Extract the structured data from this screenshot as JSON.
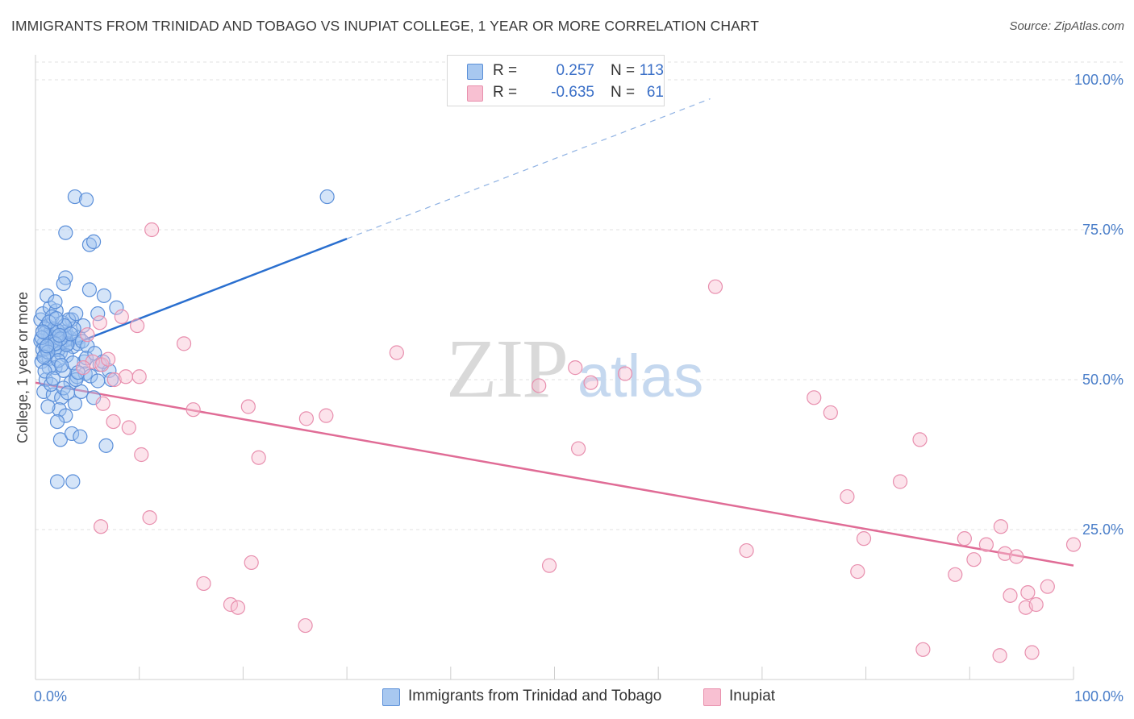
{
  "header": {
    "title": "IMMIGRANTS FROM TRINIDAD AND TOBAGO VS INUPIAT COLLEGE, 1 YEAR OR MORE CORRELATION CHART",
    "source": "Source: ZipAtlas.com"
  },
  "watermark": {
    "zip": "ZIP",
    "atlas": "atlas"
  },
  "legend": {
    "rows": [
      {
        "r_label": "R =",
        "r_value": "0.257",
        "n_label": "N =",
        "n_value": "113",
        "color": "#a8c8f0",
        "border": "#5a8fd8"
      },
      {
        "r_label": "R =",
        "r_value": "-0.635",
        "n_label": "N =",
        "n_value": "61",
        "color": "#f8c0d2",
        "border": "#e890ad"
      }
    ]
  },
  "bottom_legend": {
    "items": [
      {
        "label": "Immigrants from Trinidad and Tobago",
        "color": "#a8c8f0"
      },
      {
        "label": "Inupiat",
        "color": "#f8c0d2"
      }
    ]
  },
  "chart_data": {
    "type": "scatter",
    "title": "IMMIGRANTS FROM TRINIDAD AND TOBAGO VS INUPIAT COLLEGE, 1 YEAR OR MORE CORRELATION CHART",
    "xlabel": "",
    "ylabel": "College, 1 year or more",
    "xlim": [
      0,
      100
    ],
    "ylim": [
      0,
      100
    ],
    "x_tick_labels": [
      "0.0%",
      "100.0%"
    ],
    "y_tick_labels": [
      "25.0%",
      "50.0%",
      "75.0%",
      "100.0%"
    ],
    "y_ticks": [
      25,
      50,
      75,
      100
    ],
    "grid": true,
    "series": [
      {
        "name": "Immigrants from Trinidad and Tobago",
        "color": "#5b8fd9",
        "fill": "rgba(160,195,240,0.45)",
        "trend": {
          "x0": 0,
          "y0": 53.5,
          "x1": 30,
          "y1": 73.5,
          "dash_to_x": 65,
          "line_color": "#2a6fcf"
        },
        "points": [
          [
            0.8,
            56
          ],
          [
            1.2,
            57.5
          ],
          [
            1.5,
            58
          ],
          [
            0.5,
            60
          ],
          [
            1.8,
            55
          ],
          [
            2.2,
            56.5
          ],
          [
            2.6,
            57
          ],
          [
            1.1,
            59
          ],
          [
            0.7,
            61
          ],
          [
            1.4,
            62
          ],
          [
            2.0,
            61.5
          ],
          [
            1.6,
            60.5
          ],
          [
            2.9,
            58
          ],
          [
            3.3,
            57
          ],
          [
            0.9,
            54
          ],
          [
            1.3,
            53.5
          ],
          [
            2.4,
            54.5
          ],
          [
            3.6,
            55.5
          ],
          [
            0.6,
            53
          ],
          [
            1.9,
            52
          ],
          [
            2.7,
            51.5
          ],
          [
            3.1,
            56
          ],
          [
            4.2,
            57
          ],
          [
            4.6,
            59
          ],
          [
            1.0,
            50
          ],
          [
            0.8,
            48
          ],
          [
            1.7,
            47.5
          ],
          [
            2.5,
            47
          ],
          [
            3.4,
            49.5
          ],
          [
            4.0,
            50.5
          ],
          [
            2.3,
            45
          ],
          [
            2.9,
            44
          ],
          [
            2.1,
            43
          ],
          [
            3.8,
            46
          ],
          [
            4.4,
            48
          ],
          [
            1.2,
            45.5
          ],
          [
            5.6,
            47
          ],
          [
            2.4,
            40
          ],
          [
            3.5,
            41
          ],
          [
            4.3,
            40.5
          ],
          [
            6.8,
            39
          ],
          [
            2.1,
            33
          ],
          [
            3.6,
            33
          ],
          [
            3.8,
            80.5
          ],
          [
            4.9,
            80
          ],
          [
            2.9,
            74.5
          ],
          [
            5.2,
            72.5
          ],
          [
            5.6,
            73
          ],
          [
            2.9,
            67
          ],
          [
            2.7,
            66
          ],
          [
            6.6,
            64
          ],
          [
            5.2,
            65
          ],
          [
            7.8,
            62
          ],
          [
            1.1,
            64
          ],
          [
            1.9,
            63
          ],
          [
            6.0,
            61
          ],
          [
            3.5,
            60
          ],
          [
            0.9,
            58.5
          ],
          [
            1.5,
            58
          ],
          [
            2.8,
            57.5
          ],
          [
            3.7,
            58.5
          ],
          [
            4.1,
            56
          ],
          [
            0.5,
            56.5
          ],
          [
            2.2,
            55
          ],
          [
            3.0,
            54
          ],
          [
            4.7,
            53
          ],
          [
            6.2,
            52.5
          ],
          [
            7.1,
            51.5
          ],
          [
            4.8,
            51
          ],
          [
            3.9,
            50
          ],
          [
            7.3,
            50
          ],
          [
            1.3,
            52
          ],
          [
            2.0,
            57
          ],
          [
            0.7,
            55
          ],
          [
            1.8,
            58.5
          ],
          [
            2.6,
            59.5
          ],
          [
            3.2,
            60
          ],
          [
            1.4,
            57.2
          ],
          [
            0.9,
            57.8
          ],
          [
            2.1,
            58.2
          ],
          [
            1.6,
            56.3
          ],
          [
            3.0,
            55.8
          ],
          [
            2.4,
            56.8
          ],
          [
            1.0,
            55.2
          ],
          [
            0.6,
            57.0
          ],
          [
            1.9,
            56.0
          ],
          [
            2.8,
            59.0
          ],
          [
            3.4,
            57.6
          ],
          [
            4.5,
            56.4
          ],
          [
            5.0,
            55.6
          ],
          [
            1.2,
            54.6
          ],
          [
            0.8,
            53.8
          ],
          [
            2.2,
            53.2
          ],
          [
            3.6,
            52.8
          ],
          [
            4.1,
            51.2
          ],
          [
            5.3,
            50.6
          ],
          [
            6.0,
            49.8
          ],
          [
            1.5,
            49.2
          ],
          [
            2.7,
            48.6
          ],
          [
            3.1,
            47.8
          ],
          [
            0.9,
            51.4
          ],
          [
            1.7,
            50.2
          ],
          [
            2.5,
            52.4
          ],
          [
            4.9,
            53.6
          ],
          [
            5.7,
            54.4
          ],
          [
            6.5,
            53.0
          ],
          [
            1.3,
            59.6
          ],
          [
            2.0,
            60.2
          ],
          [
            0.7,
            58.0
          ],
          [
            3.9,
            61.0
          ],
          [
            28.1,
            80.5
          ],
          [
            1.1,
            55.6
          ],
          [
            2.3,
            57.4
          ]
        ]
      },
      {
        "name": "Inupiat",
        "color": "#e88fae",
        "fill": "rgba(248,192,210,0.45)",
        "trend": {
          "x0": 0,
          "y0": 49.5,
          "x1": 100,
          "y1": 19,
          "line_color": "#e06c96"
        },
        "points": [
          [
            11.2,
            75
          ],
          [
            5.5,
            53
          ],
          [
            4.6,
            52
          ],
          [
            6.4,
            52.5
          ],
          [
            8.3,
            60.5
          ],
          [
            6.2,
            59.5
          ],
          [
            7.6,
            50
          ],
          [
            10.0,
            50.5
          ],
          [
            6.5,
            46
          ],
          [
            7.5,
            43
          ],
          [
            9.0,
            42
          ],
          [
            10.2,
            37.5
          ],
          [
            11.0,
            27
          ],
          [
            6.3,
            25.5
          ],
          [
            15.2,
            45
          ],
          [
            20.5,
            45.5
          ],
          [
            21.5,
            37
          ],
          [
            28.0,
            44
          ],
          [
            34.8,
            54.5
          ],
          [
            20.8,
            19.5
          ],
          [
            16.2,
            16
          ],
          [
            18.8,
            12.5
          ],
          [
            19.5,
            12
          ],
          [
            26.0,
            9
          ],
          [
            52.0,
            52
          ],
          [
            53.5,
            49.5
          ],
          [
            56.8,
            51
          ],
          [
            65.5,
            65.5
          ],
          [
            52.3,
            38.5
          ],
          [
            49.5,
            19
          ],
          [
            75.0,
            47
          ],
          [
            76.6,
            44.5
          ],
          [
            78.2,
            30.5
          ],
          [
            85.2,
            40
          ],
          [
            83.3,
            33
          ],
          [
            79.8,
            23.5
          ],
          [
            79.2,
            18
          ],
          [
            85.5,
            5
          ],
          [
            88.6,
            17.5
          ],
          [
            89.5,
            23.5
          ],
          [
            90.4,
            20
          ],
          [
            91.6,
            22.5
          ],
          [
            93.0,
            25.5
          ],
          [
            93.4,
            21
          ],
          [
            94.5,
            20.5
          ],
          [
            93.9,
            14
          ],
          [
            95.6,
            14.5
          ],
          [
            95.4,
            12
          ],
          [
            96.4,
            12.5
          ],
          [
            97.5,
            15.5
          ],
          [
            100.0,
            22.5
          ],
          [
            92.9,
            4
          ],
          [
            96.0,
            4.5
          ],
          [
            26.1,
            43.5
          ],
          [
            9.8,
            59
          ],
          [
            14.3,
            56
          ],
          [
            48.5,
            49
          ],
          [
            68.5,
            21.5
          ],
          [
            8.7,
            50.5
          ],
          [
            5.0,
            57.5
          ],
          [
            7.0,
            53.4
          ]
        ]
      }
    ]
  }
}
